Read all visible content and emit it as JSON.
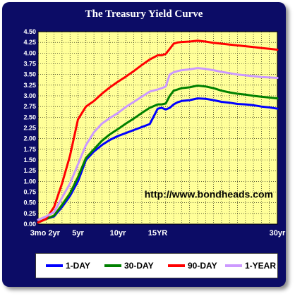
{
  "chart_data": {
    "type": "line",
    "title": "The Treasury Yield Curve",
    "xlabel": "",
    "ylabel": "",
    "ylim": [
      0,
      4.5
    ],
    "ytick_step": 0.25,
    "x_ticks": [
      {
        "x": 0,
        "label": "3mo"
      },
      {
        "x": 2,
        "label": "2yr"
      },
      {
        "x": 5,
        "label": "5yr"
      },
      {
        "x": 10,
        "label": "10yr"
      },
      {
        "x": 15,
        "label": "15YR"
      },
      {
        "x": 30,
        "label": "30yr"
      }
    ],
    "xlim": [
      0,
      30
    ],
    "grid": true,
    "annotation": "http://www.bondheads.com",
    "legend_position": "bottom",
    "series": [
      {
        "name": "1-DAY",
        "color": "#0000ff",
        "x": [
          0,
          1,
          2,
          3,
          4,
          5,
          6,
          7,
          8,
          9,
          10,
          11,
          12,
          13,
          14,
          15,
          15.5,
          16,
          16.5,
          17,
          17.5,
          18,
          19,
          20,
          21,
          22,
          23,
          24,
          25,
          26,
          27,
          28,
          29,
          30
        ],
        "y": [
          0.04,
          0.12,
          0.18,
          0.4,
          0.66,
          1.0,
          1.5,
          1.7,
          1.85,
          1.97,
          2.06,
          2.13,
          2.2,
          2.27,
          2.34,
          2.7,
          2.72,
          2.68,
          2.72,
          2.8,
          2.85,
          2.88,
          2.9,
          2.94,
          2.93,
          2.9,
          2.86,
          2.84,
          2.81,
          2.8,
          2.78,
          2.75,
          2.73,
          2.7
        ]
      },
      {
        "name": "30-DAY",
        "color": "#008000",
        "x": [
          0,
          1,
          2,
          3,
          4,
          5,
          6,
          7,
          8,
          9,
          10,
          11,
          12,
          13,
          14,
          15,
          15.5,
          16,
          16.5,
          17,
          17.5,
          18,
          19,
          20,
          21,
          22,
          23,
          24,
          25,
          26,
          27,
          28,
          29,
          30
        ],
        "y": [
          0.04,
          0.12,
          0.2,
          0.45,
          0.72,
          1.1,
          1.55,
          1.75,
          1.95,
          2.1,
          2.22,
          2.35,
          2.47,
          2.6,
          2.72,
          2.8,
          2.8,
          2.82,
          3.0,
          3.12,
          3.15,
          3.18,
          3.2,
          3.24,
          3.22,
          3.18,
          3.12,
          3.08,
          3.05,
          3.03,
          3.0,
          2.98,
          2.96,
          2.94
        ]
      },
      {
        "name": "90-DAY",
        "color": "#ff0000",
        "x": [
          0,
          1,
          2,
          3,
          4,
          5,
          6,
          7,
          8,
          9,
          10,
          11,
          12,
          13,
          14,
          15,
          15.5,
          16,
          16.5,
          17,
          17.5,
          18,
          19,
          20,
          21,
          22,
          23,
          24,
          25,
          26,
          27,
          28,
          29,
          30
        ],
        "y": [
          0.04,
          0.12,
          0.4,
          0.95,
          1.6,
          2.45,
          2.75,
          2.88,
          3.05,
          3.2,
          3.33,
          3.45,
          3.58,
          3.72,
          3.85,
          3.95,
          3.95,
          3.98,
          4.1,
          4.22,
          4.25,
          4.26,
          4.27,
          4.29,
          4.27,
          4.24,
          4.22,
          4.2,
          4.18,
          4.16,
          4.14,
          4.12,
          4.1,
          4.08
        ]
      },
      {
        "name": "1-YEAR",
        "color": "#cc99ff",
        "x": [
          0,
          1,
          2,
          3,
          4,
          5,
          6,
          7,
          8,
          9,
          10,
          11,
          12,
          13,
          14,
          15,
          15.5,
          16,
          16.5,
          17,
          17.5,
          18,
          19,
          20,
          21,
          22,
          23,
          24,
          25,
          26,
          27,
          28,
          29,
          30
        ],
        "y": [
          0.1,
          0.18,
          0.28,
          0.62,
          0.95,
          1.4,
          1.85,
          2.15,
          2.35,
          2.48,
          2.6,
          2.74,
          2.86,
          2.98,
          3.1,
          3.15,
          3.18,
          3.22,
          3.5,
          3.55,
          3.58,
          3.6,
          3.62,
          3.65,
          3.63,
          3.6,
          3.56,
          3.53,
          3.5,
          3.48,
          3.46,
          3.44,
          3.43,
          3.42
        ]
      }
    ]
  }
}
